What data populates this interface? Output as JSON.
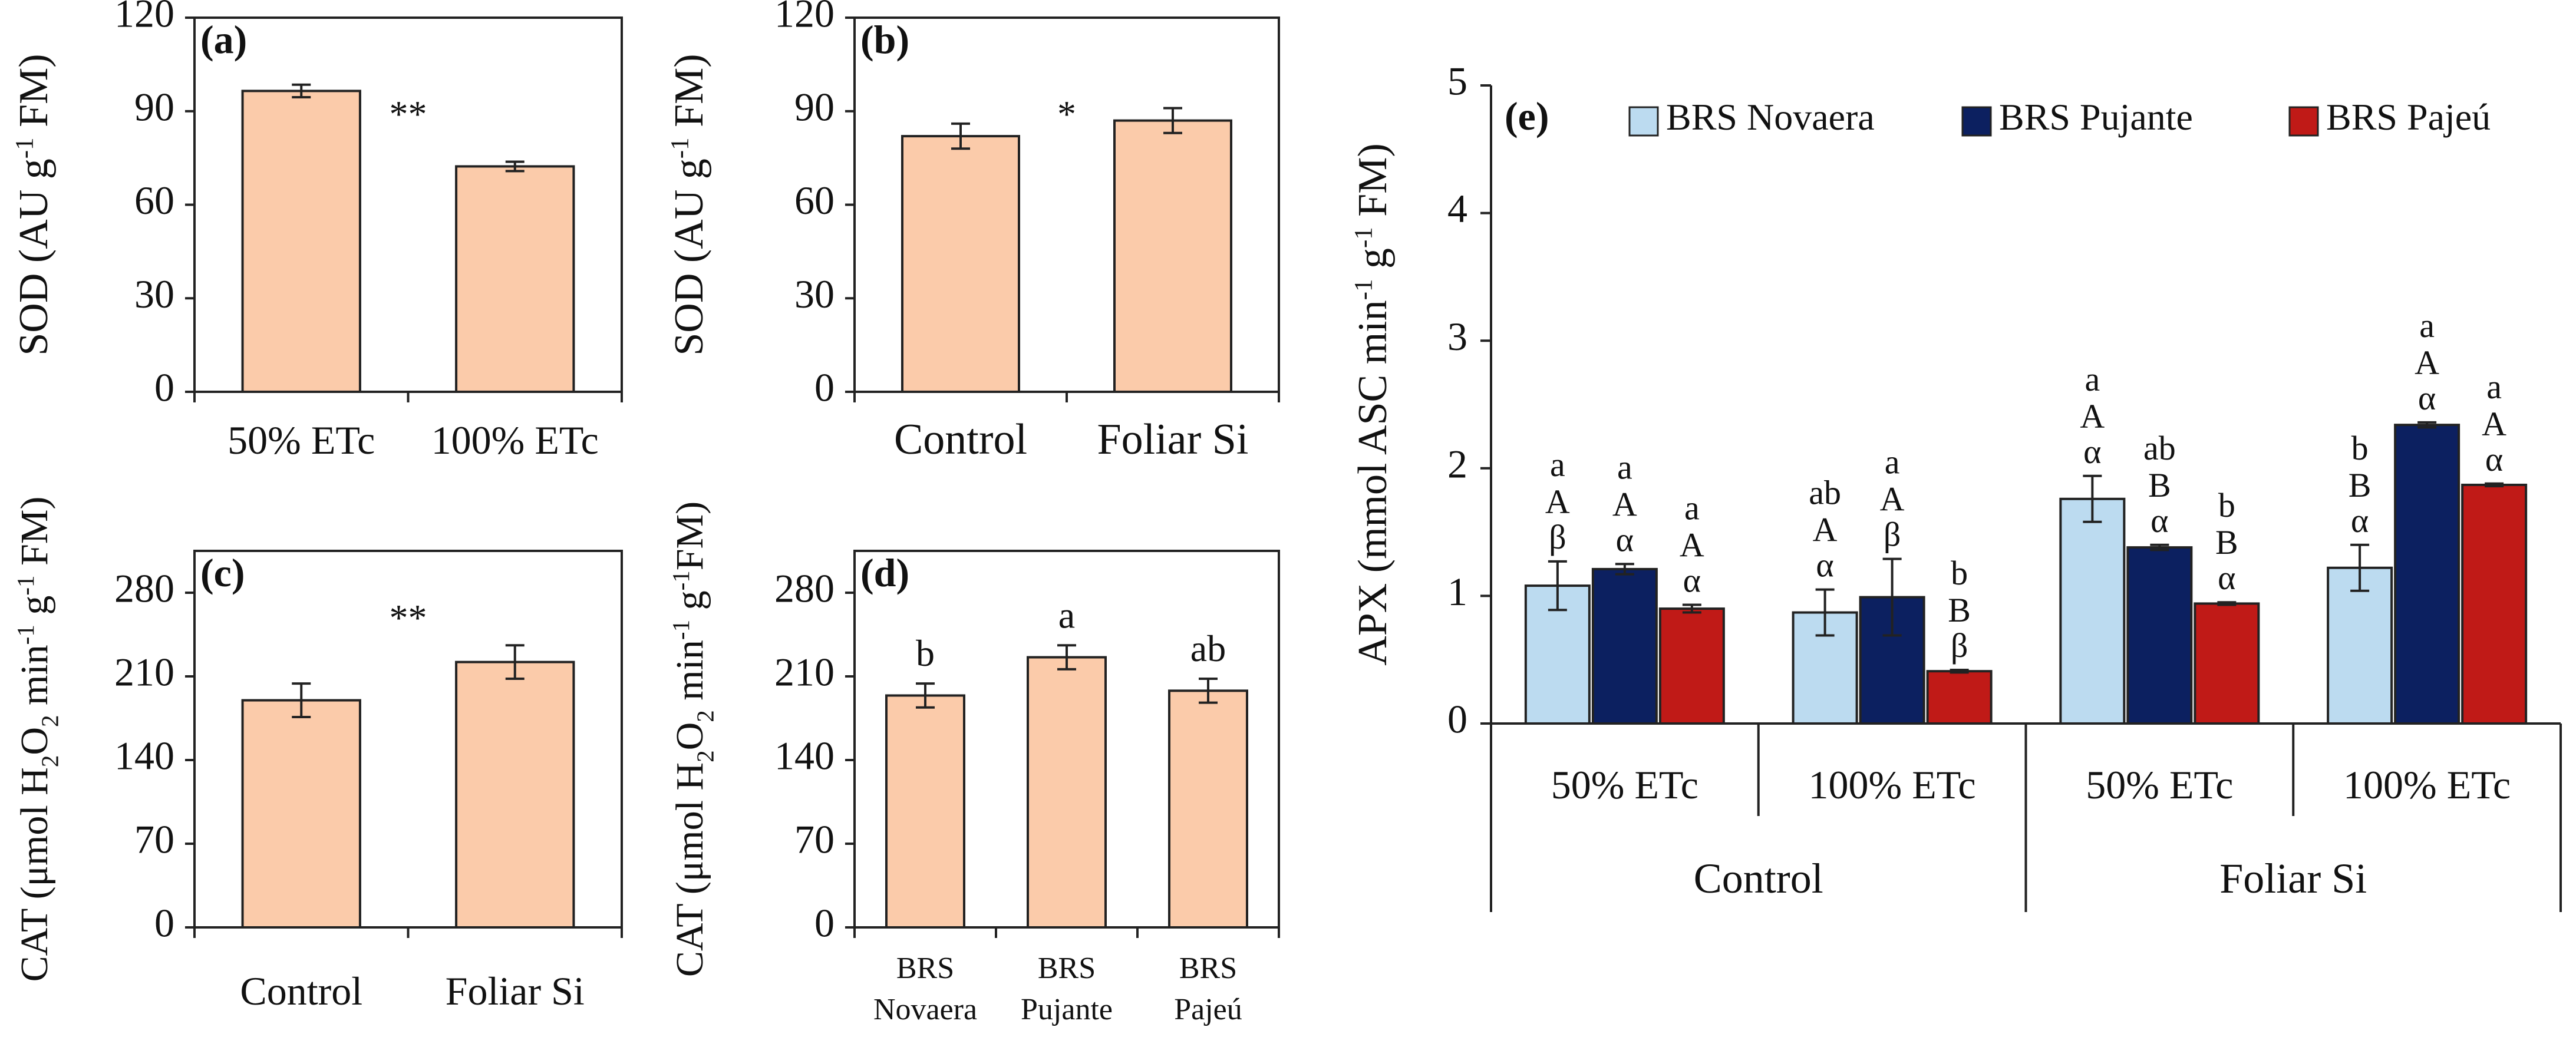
{
  "colors": {
    "peach": "#FBCBAA",
    "novaera": "#BCDBF0",
    "pujante": "#0C2060",
    "pajeu": "#C01A17",
    "axis": "#222222"
  },
  "chart_data": [
    {
      "id": "a",
      "type": "bar",
      "panel_label": "(a)",
      "ylabel_main": "SOD (AU g",
      "ylabel_sup": "-1",
      "ylabel_tail": " FM)",
      "categories": [
        "50% ETc",
        "100% ETc"
      ],
      "values": [
        96.5,
        72.3
      ],
      "errors": [
        2.0,
        1.5
      ],
      "ylim": [
        0,
        120
      ],
      "yticks": [
        0,
        30,
        60,
        90,
        120
      ],
      "significance": "**",
      "letters": []
    },
    {
      "id": "b",
      "type": "bar",
      "panel_label": "(b)",
      "ylabel_main": "SOD (AU g",
      "ylabel_sup": "-1",
      "ylabel_tail": " FM)",
      "categories": [
        "Control",
        "Foliar Si"
      ],
      "values": [
        82.0,
        87.0
      ],
      "errors": [
        4.0,
        4.0
      ],
      "ylim": [
        0,
        120
      ],
      "yticks": [
        0,
        30,
        60,
        90,
        120
      ],
      "significance": "*",
      "letters": []
    },
    {
      "id": "c",
      "type": "bar",
      "panel_label": "(c)",
      "ylabel_main": "CAT (μmol H",
      "ylabel_sub": "2",
      "ylabel_mid": "O",
      "ylabel_sub2": "2",
      "ylabel_mid2": " min",
      "ylabel_sup": "-1",
      "ylabel_mid3": " g",
      "ylabel_sup2": "-1",
      "ylabel_tail": " FM)",
      "categories": [
        "Control",
        "Foliar Si"
      ],
      "values": [
        190,
        222
      ],
      "errors": [
        14,
        14
      ],
      "ylim": [
        0,
        315
      ],
      "yticks": [
        0,
        70,
        140,
        210,
        280
      ],
      "significance": "**",
      "letters": []
    },
    {
      "id": "d",
      "type": "bar",
      "panel_label": "(d)",
      "ylabel_main": "CAT (μmol H",
      "ylabel_sub": "2",
      "ylabel_mid": "O",
      "ylabel_sub2": "2",
      "ylabel_mid2": " min",
      "ylabel_sup": "-1",
      "ylabel_mid3": " g",
      "ylabel_sup2": "-1",
      "ylabel_tail": "FM)",
      "categories": [
        [
          "BRS",
          "Novaera"
        ],
        [
          "BRS",
          "Pujante"
        ],
        [
          "BRS",
          "Pajeú"
        ]
      ],
      "values": [
        194,
        226,
        198
      ],
      "errors": [
        10,
        10,
        10
      ],
      "ylim": [
        0,
        315
      ],
      "yticks": [
        0,
        70,
        140,
        210,
        280
      ],
      "significance": "",
      "letters": [
        "b",
        "a",
        "ab"
      ]
    },
    {
      "id": "e",
      "type": "bar",
      "panel_label": "(e)",
      "ylabel_main": "APX (mmol ASC min",
      "ylabel_sup": "-1",
      "ylabel_mid": " g",
      "ylabel_sup2": "-1",
      "ylabel_tail": " FM)",
      "ylim": [
        0,
        5
      ],
      "yticks": [
        0,
        1,
        2,
        3,
        4,
        5
      ],
      "legend": [
        "BRS Novaera",
        "BRS Pujante",
        "BRS Pajeú"
      ],
      "groups": [
        "50% ETc",
        "100% ETc",
        "50% ETc",
        "100% ETc"
      ],
      "treatments": [
        "Control",
        "Foliar Si"
      ],
      "series": [
        {
          "name": "BRS Novaera",
          "values": [
            1.08,
            0.87,
            1.76,
            1.22
          ],
          "errors": [
            0.19,
            0.18,
            0.18,
            0.18
          ],
          "letters": [
            [
              "a",
              "A",
              "β"
            ],
            [
              "ab",
              "A",
              "α"
            ],
            [
              "a",
              "A",
              "α"
            ],
            [
              "b",
              "B",
              "α"
            ]
          ]
        },
        {
          "name": "BRS Pujante",
          "values": [
            1.21,
            0.99,
            1.38,
            2.34
          ],
          "errors": [
            0.04,
            0.3,
            0.02,
            0.02
          ],
          "letters": [
            [
              "a",
              "A",
              "α"
            ],
            [
              "a",
              "A",
              "β"
            ],
            [
              "ab",
              "B",
              "α"
            ],
            [
              "a",
              "A",
              "α"
            ]
          ]
        },
        {
          "name": "BRS Pajeú",
          "values": [
            0.9,
            0.41,
            0.94,
            1.87
          ],
          "errors": [
            0.03,
            0.01,
            0.01,
            0.01
          ],
          "letters": [
            [
              "a",
              "A",
              "α"
            ],
            [
              "b",
              "B",
              "β"
            ],
            [
              "b",
              "B",
              "α"
            ],
            [
              "a",
              "A",
              "α"
            ]
          ]
        }
      ]
    }
  ]
}
